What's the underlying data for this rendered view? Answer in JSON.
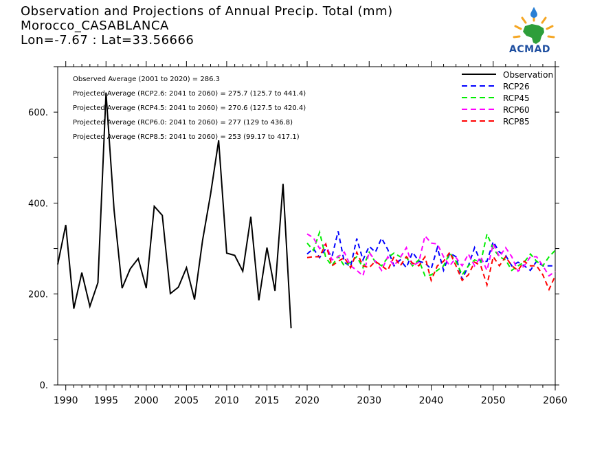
{
  "header": {
    "title_line1": "Observation and Projections of Annual Precip. Total (mm)",
    "title_line2": "Morocco_CASABLANCA",
    "title_line3": "Lon=-7.67 : Lat=33.56666"
  },
  "logo": {
    "text": "ACMAD"
  },
  "chart_data": {
    "type": "line",
    "xlim": [
      1989,
      2060
    ],
    "ylim": [
      0,
      700
    ],
    "x_ticks": [
      1990,
      1995,
      2000,
      2005,
      2010,
      2015,
      2020,
      2030,
      2040,
      2050,
      2060
    ],
    "y_ticks": [
      0,
      200,
      400,
      600
    ],
    "y_tick_labels": [
      "0.",
      "200.",
      "400.",
      "600."
    ],
    "legend_position": "top-right",
    "annotations": [
      "Observed Average (2001 to 2020) = 286.3",
      "Projected Average (RCP2.6: 2041 to 2060) = 275.7 (125.7 to 441.4)",
      "Projected Average (RCP4.5: 2041 to 2060) = 270.6 (127.5 to 420.4)",
      "Projected Average (RCP6.0: 2041 to 2060) = 277 (129 to 436.8)",
      "Projected Average (RCP8.5: 2041 to 2060) = 253 (99.17 to 417.1)"
    ],
    "series": [
      {
        "name": "Observation",
        "color": "#000000",
        "dashed": false,
        "x": [
          1989,
          1990,
          1991,
          1992,
          1993,
          1994,
          1995,
          1996,
          1997,
          1998,
          1999,
          2000,
          2001,
          2002,
          2003,
          2004,
          2005,
          2006,
          2007,
          2008,
          2009,
          2010,
          2011,
          2012,
          2013,
          2014,
          2015,
          2016,
          2017,
          2018,
          2019,
          2020
        ],
        "y": [
          265,
          352,
          168,
          247,
          173,
          225,
          643,
          385,
          213,
          255,
          278,
          213,
          393,
          373,
          201,
          215,
          258,
          188,
          318,
          420,
          538,
          290,
          285,
          250,
          370,
          186,
          302,
          207,
          442,
          125,
          null,
          null
        ]
      },
      {
        "name": "RCP26",
        "color": "#0000ff",
        "dashed": true,
        "x": [
          2020,
          2021,
          2022,
          2023,
          2024,
          2025,
          2026,
          2027,
          2028,
          2029,
          2030,
          2031,
          2032,
          2033,
          2034,
          2035,
          2036,
          2037,
          2038,
          2039,
          2040,
          2041,
          2042,
          2043,
          2044,
          2045,
          2046,
          2047,
          2048,
          2049,
          2050,
          2051,
          2052,
          2053,
          2054,
          2055,
          2056,
          2057,
          2058,
          2059,
          2060
        ],
        "y": [
          288,
          300,
          280,
          300,
          282,
          338,
          270,
          260,
          322,
          275,
          305,
          292,
          323,
          298,
          262,
          275,
          258,
          292,
          272,
          268,
          255,
          302,
          252,
          290,
          282,
          232,
          262,
          302,
          270,
          272,
          315,
          292,
          285,
          262,
          270,
          262,
          252,
          272,
          262,
          262,
          262
        ]
      },
      {
        "name": "RCP45",
        "color": "#00ee00",
        "dashed": true,
        "x": [
          2020,
          2021,
          2022,
          2023,
          2024,
          2025,
          2026,
          2027,
          2028,
          2029,
          2030,
          2031,
          2032,
          2033,
          2034,
          2035,
          2036,
          2037,
          2038,
          2039,
          2040,
          2041,
          2042,
          2043,
          2044,
          2045,
          2046,
          2047,
          2048,
          2049,
          2050,
          2051,
          2052,
          2053,
          2054,
          2055,
          2056,
          2057,
          2058,
          2059,
          2060
        ],
        "y": [
          312,
          296,
          336,
          280,
          262,
          283,
          262,
          270,
          282,
          258,
          292,
          270,
          262,
          280,
          290,
          282,
          280,
          262,
          275,
          240,
          242,
          252,
          262,
          290,
          272,
          242,
          262,
          275,
          270,
          332,
          300,
          282,
          275,
          252,
          262,
          270,
          288,
          272,
          262,
          282,
          296
        ]
      },
      {
        "name": "RCP60",
        "color": "#ff00ff",
        "dashed": true,
        "x": [
          2020,
          2021,
          2022,
          2023,
          2024,
          2025,
          2026,
          2027,
          2028,
          2029,
          2030,
          2031,
          2032,
          2033,
          2034,
          2035,
          2036,
          2037,
          2038,
          2039,
          2040,
          2041,
          2042,
          2043,
          2044,
          2045,
          2046,
          2047,
          2048,
          2049,
          2050,
          2051,
          2052,
          2053,
          2054,
          2055,
          2056,
          2057,
          2058,
          2059,
          2060
        ],
        "y": [
          332,
          324,
          300,
          310,
          275,
          282,
          292,
          262,
          252,
          240,
          292,
          272,
          252,
          282,
          262,
          280,
          302,
          262,
          270,
          328,
          312,
          310,
          282,
          262,
          280,
          262,
          288,
          262,
          282,
          252,
          310,
          282,
          302,
          282,
          250,
          262,
          282,
          282,
          262,
          240,
          250
        ]
      },
      {
        "name": "RCP85",
        "color": "#ff0000",
        "dashed": true,
        "x": [
          2020,
          2021,
          2022,
          2023,
          2024,
          2025,
          2026,
          2027,
          2028,
          2029,
          2030,
          2031,
          2032,
          2033,
          2034,
          2035,
          2036,
          2037,
          2038,
          2039,
          2040,
          2041,
          2042,
          2043,
          2044,
          2045,
          2046,
          2047,
          2048,
          2049,
          2050,
          2051,
          2052,
          2053,
          2054,
          2055,
          2056,
          2057,
          2058,
          2059,
          2060
        ],
        "y": [
          280,
          282,
          282,
          310,
          262,
          272,
          280,
          258,
          292,
          262,
          258,
          272,
          262,
          252,
          282,
          262,
          282,
          268,
          262,
          282,
          230,
          262,
          272,
          292,
          262,
          230,
          242,
          270,
          262,
          220,
          282,
          262,
          282,
          262,
          252,
          272,
          262,
          262,
          242,
          210,
          240
        ]
      }
    ]
  }
}
